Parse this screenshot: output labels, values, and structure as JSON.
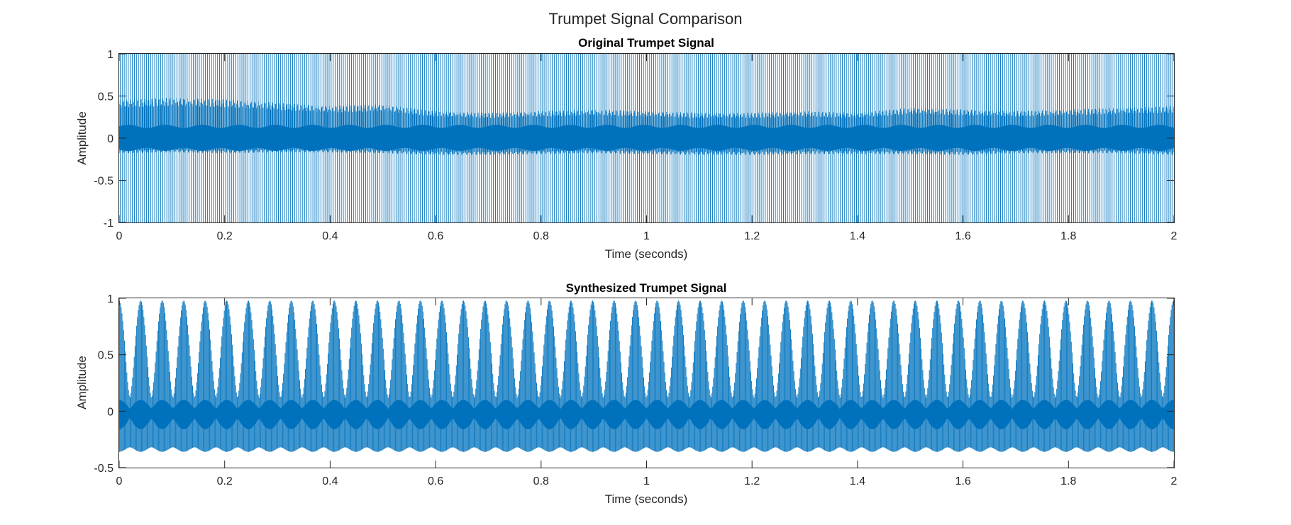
{
  "figure_title": "Trumpet Signal Comparison",
  "chart_data": [
    {
      "type": "line",
      "title": "Original Trumpet Signal",
      "xlabel": "Time (seconds)",
      "ylabel": "Amplitude",
      "xlim": [
        0,
        2
      ],
      "ylim": [
        -1,
        1
      ],
      "xticks": [
        "0",
        "0.2",
        "0.4",
        "0.6",
        "0.8",
        "1",
        "1.2",
        "1.4",
        "1.6",
        "1.8",
        "2"
      ],
      "yticks": [
        "1",
        "0.5",
        "0",
        "-0.5",
        "-1"
      ],
      "ytick_values": [
        1,
        0.5,
        0,
        -0.5,
        -1
      ],
      "grid": false,
      "color": "#0072BD",
      "series": [
        {
          "values_description": "dense oscillating waveform",
          "x": [
            0,
            0.1,
            0.2,
            0.3,
            0.4,
            0.5,
            0.6,
            0.7,
            0.8,
            0.9,
            1.0,
            1.1,
            1.2,
            1.3,
            1.4,
            1.5,
            1.6,
            1.7,
            1.8,
            1.9,
            2.0
          ],
          "envelope_upper": [
            0.45,
            0.48,
            0.46,
            0.42,
            0.38,
            0.4,
            0.32,
            0.3,
            0.32,
            0.34,
            0.32,
            0.3,
            0.3,
            0.32,
            0.3,
            0.36,
            0.34,
            0.32,
            0.34,
            0.36,
            0.38
          ],
          "envelope_lower": [
            -0.18,
            -0.17,
            -0.18,
            -0.17,
            -0.17,
            -0.18,
            -0.2,
            -0.2,
            -0.19,
            -0.18,
            -0.19,
            -0.2,
            -0.2,
            -0.19,
            -0.19,
            -0.19,
            -0.2,
            -0.18,
            -0.18,
            -0.18,
            -0.2
          ],
          "peak_max": 1,
          "peak_min": -1
        }
      ]
    },
    {
      "type": "line",
      "title": "Synthesized Trumpet Signal",
      "xlabel": "Time (seconds)",
      "ylabel": "Amplitude",
      "xlim": [
        0,
        2
      ],
      "ylim": [
        -0.5,
        1
      ],
      "xticks": [
        "0",
        "0.2",
        "0.4",
        "0.6",
        "0.8",
        "1",
        "1.2",
        "1.4",
        "1.6",
        "1.8",
        "2"
      ],
      "yticks": [
        "1",
        "0.5",
        "0",
        "-0.5"
      ],
      "ytick_values": [
        1,
        0.5,
        0,
        -0.5
      ],
      "grid": false,
      "color": "#0072BD",
      "series": [
        {
          "beat_period_seconds": 0.0408,
          "peak_max": 0.98,
          "peak_min": -0.36,
          "core_upper": 0.1,
          "core_lower": -0.16
        }
      ]
    }
  ]
}
